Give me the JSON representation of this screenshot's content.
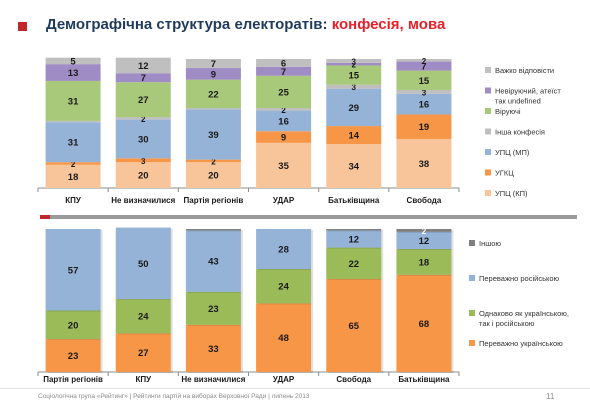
{
  "title": {
    "main": "Демографічна структура електоратів: ",
    "highlight": "конфесія, мова"
  },
  "footer": "Соціологічна група «Рейтинг»  |  Рейтинги партій на виборах Верховної Ради  | липень 2013",
  "page_number": "11",
  "chart_data": [
    {
      "type": "bar",
      "stacked": true,
      "categories": [
        "КПУ",
        "Не визначилися",
        "Партія регіонів",
        "УДАР",
        "Батьківщина",
        "Свобода"
      ],
      "ylim": [
        0,
        100
      ],
      "grid": false,
      "legend_position": "right",
      "series": [
        {
          "name": "УПЦ (КП)",
          "color": "#f8c59b",
          "values": [
            18,
            20,
            20,
            35,
            34,
            38
          ]
        },
        {
          "name": "УГКЦ",
          "color": "#f79646",
          "values": [
            2,
            3,
            2,
            9,
            14,
            19
          ]
        },
        {
          "name": "УПЦ (МП)",
          "color": "#95b3d7",
          "values": [
            31,
            30,
            39,
            16,
            29,
            16
          ]
        },
        {
          "name": "Інша конфесія",
          "color": "#bfbfbf",
          "values": [
            1,
            2,
            1,
            2,
            3,
            3
          ]
        },
        {
          "name": "Віруючі",
          "color": "#a9c97a",
          "values": [
            31,
            27,
            22,
            25,
            15,
            15
          ]
        },
        {
          "name": "Невіруючий, атеїст",
          "color": "#a08cc4",
          "values": [
            13,
            7,
            9,
            7,
            2,
            7
          ]
        },
        {
          "name": "Важко відповісти",
          "color": "#bfbfbf",
          "values": [
            5,
            12,
            7,
            6,
            3,
            2
          ]
        }
      ]
    },
    {
      "type": "bar",
      "stacked": true,
      "categories": [
        "Партія регіонів",
        "КПУ",
        "Не визначилися",
        "УДАР",
        "Свобода",
        "Батьківщина"
      ],
      "ylim": [
        0,
        100
      ],
      "grid": false,
      "legend_position": "right",
      "series": [
        {
          "name": "Переважно українською",
          "color": "#f79646",
          "values": [
            23,
            27,
            33,
            48,
            65,
            68
          ]
        },
        {
          "name": "Однаково як українською, так і російською",
          "color": "#9bbb59",
          "values": [
            20,
            24,
            23,
            24,
            22,
            18
          ]
        },
        {
          "name": "Переважно російською",
          "color": "#95b3d7",
          "values": [
            57,
            50,
            43,
            28,
            12,
            12
          ]
        },
        {
          "name": "Іншою",
          "color": "#7f7f7f",
          "values": [
            0,
            0,
            1,
            0,
            1,
            2
          ]
        }
      ]
    }
  ]
}
